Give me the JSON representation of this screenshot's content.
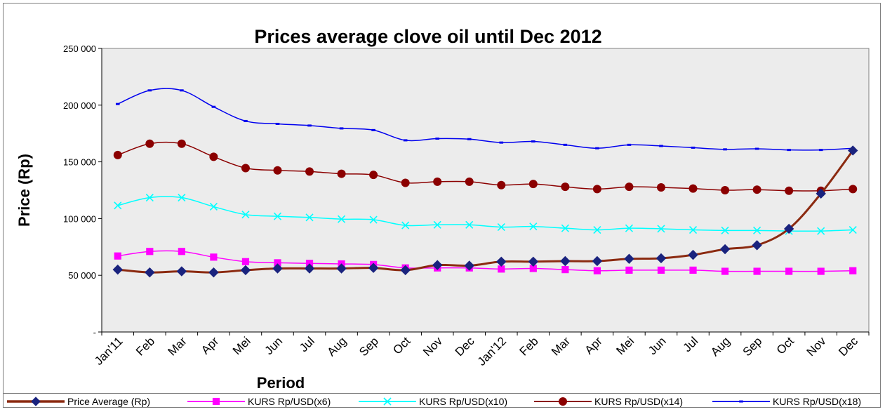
{
  "chart_data": {
    "type": "line",
    "title": "Prices average clove oil until Dec 2012",
    "xlabel": "Period",
    "ylabel": "Price (Rp)",
    "ylim": [
      0,
      250000
    ],
    "y_ticks": [
      {
        "value": 0,
        "label": "-"
      },
      {
        "value": 50000,
        "label": "50 000"
      },
      {
        "value": 100000,
        "label": "100 000"
      },
      {
        "value": 150000,
        "label": "150 000"
      },
      {
        "value": 200000,
        "label": "200 000"
      },
      {
        "value": 250000,
        "label": "250 000"
      }
    ],
    "categories": [
      "Jan'11",
      "Feb",
      "Mar",
      "Apr",
      "Mei",
      "Jun",
      "Jul",
      "Aug",
      "Sep",
      "Oct",
      "Nov",
      "Dec",
      "Jan'12",
      "Feb",
      "Mar",
      "Apr",
      "Mei",
      "Jun",
      "Jul",
      "Aug",
      "Sep",
      "Oct",
      "Nov",
      "Dec"
    ],
    "grid": false,
    "plot_background": "#ececec",
    "legend_position": "bottom",
    "series": [
      {
        "name": "Price Average (Rp)",
        "color": "#8b2a10",
        "marker": "diamond",
        "marker_color": "#1a237e",
        "line_width": 3,
        "values": [
          55000,
          52500,
          53500,
          52500,
          54500,
          56000,
          56000,
          56000,
          56500,
          54500,
          59000,
          58500,
          62000,
          62000,
          62500,
          62500,
          64500,
          65000,
          68000,
          73000,
          76500,
          91000,
          122000,
          160000
        ]
      },
      {
        "name": "KURS Rp/USD(x6)",
        "color": "#ff00ff",
        "marker": "square",
        "marker_color": "#ff00ff",
        "line_width": 1.5,
        "values": [
          67000,
          71000,
          71000,
          66000,
          62000,
          61000,
          60500,
          60000,
          59500,
          56500,
          56500,
          56500,
          55500,
          56000,
          55000,
          54000,
          54500,
          54500,
          54500,
          53500,
          53500,
          53500,
          53500,
          54000
        ]
      },
      {
        "name": "KURS Rp/USD(x10)",
        "color": "#00ffff",
        "marker": "x",
        "marker_color": "#00ffff",
        "line_width": 1.5,
        "values": [
          111500,
          118500,
          118500,
          110500,
          103500,
          102000,
          101000,
          99500,
          99000,
          94000,
          94500,
          94500,
          92500,
          93000,
          91500,
          90000,
          91500,
          91000,
          90000,
          89500,
          89500,
          89000,
          89000,
          90000
        ]
      },
      {
        "name": "KURS Rp/USD(x14)",
        "color": "#8b0000",
        "marker": "circle",
        "marker_color": "#8b0000",
        "line_width": 1.5,
        "values": [
          156000,
          166000,
          166000,
          154500,
          144500,
          142500,
          141500,
          139500,
          138500,
          131500,
          132500,
          132500,
          129500,
          130500,
          128000,
          126000,
          128000,
          127500,
          126500,
          125000,
          125500,
          124500,
          124500,
          126000
        ]
      },
      {
        "name": "KURS Rp/USD(x18)",
        "color": "#0000ee",
        "marker": "dash",
        "marker_color": "#0000ee",
        "line_width": 1.5,
        "values": [
          201000,
          213000,
          213000,
          198500,
          186000,
          183500,
          182000,
          179500,
          178000,
          169000,
          170500,
          170000,
          167000,
          168000,
          165000,
          162000,
          165000,
          164000,
          162500,
          161000,
          161500,
          160500,
          160500,
          162000
        ]
      }
    ]
  }
}
